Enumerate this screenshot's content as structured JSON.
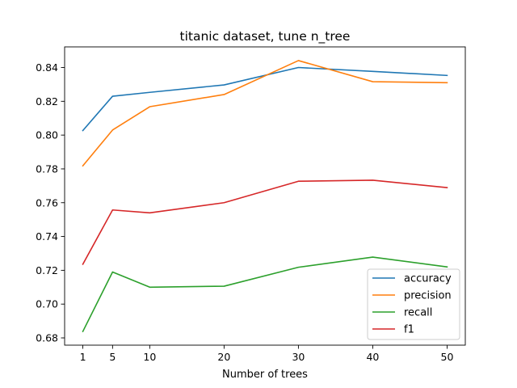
{
  "chart_data": {
    "type": "line",
    "title": "titanic dataset, tune n_tree",
    "xlabel": "Number of trees",
    "ylabel": "",
    "x": [
      1,
      5,
      10,
      20,
      30,
      40,
      50
    ],
    "xticks": [
      1,
      5,
      10,
      20,
      30,
      40,
      50
    ],
    "yticks": [
      0.68,
      0.7,
      0.72,
      0.74,
      0.76,
      0.78,
      0.8,
      0.82,
      0.84
    ],
    "xlim": [
      -1.45,
      52.45
    ],
    "ylim": [
      0.6757,
      0.8522
    ],
    "grid": false,
    "legend_position": "lower-right",
    "series": [
      {
        "name": "accuracy",
        "color": "#1f77b4",
        "values": [
          0.8027,
          0.823,
          0.8253,
          0.8297,
          0.84,
          0.8377,
          0.8353
        ]
      },
      {
        "name": "precision",
        "color": "#ff7f0e",
        "values": [
          0.7818,
          0.803,
          0.8168,
          0.824,
          0.8441,
          0.8316,
          0.831
        ]
      },
      {
        "name": "recall",
        "color": "#2ca02c",
        "values": [
          0.6838,
          0.719,
          0.71,
          0.7106,
          0.7218,
          0.7278,
          0.722
        ]
      },
      {
        "name": "f1",
        "color": "#d62728",
        "values": [
          0.7236,
          0.7557,
          0.754,
          0.76,
          0.7727,
          0.7733,
          0.7689
        ]
      }
    ]
  }
}
